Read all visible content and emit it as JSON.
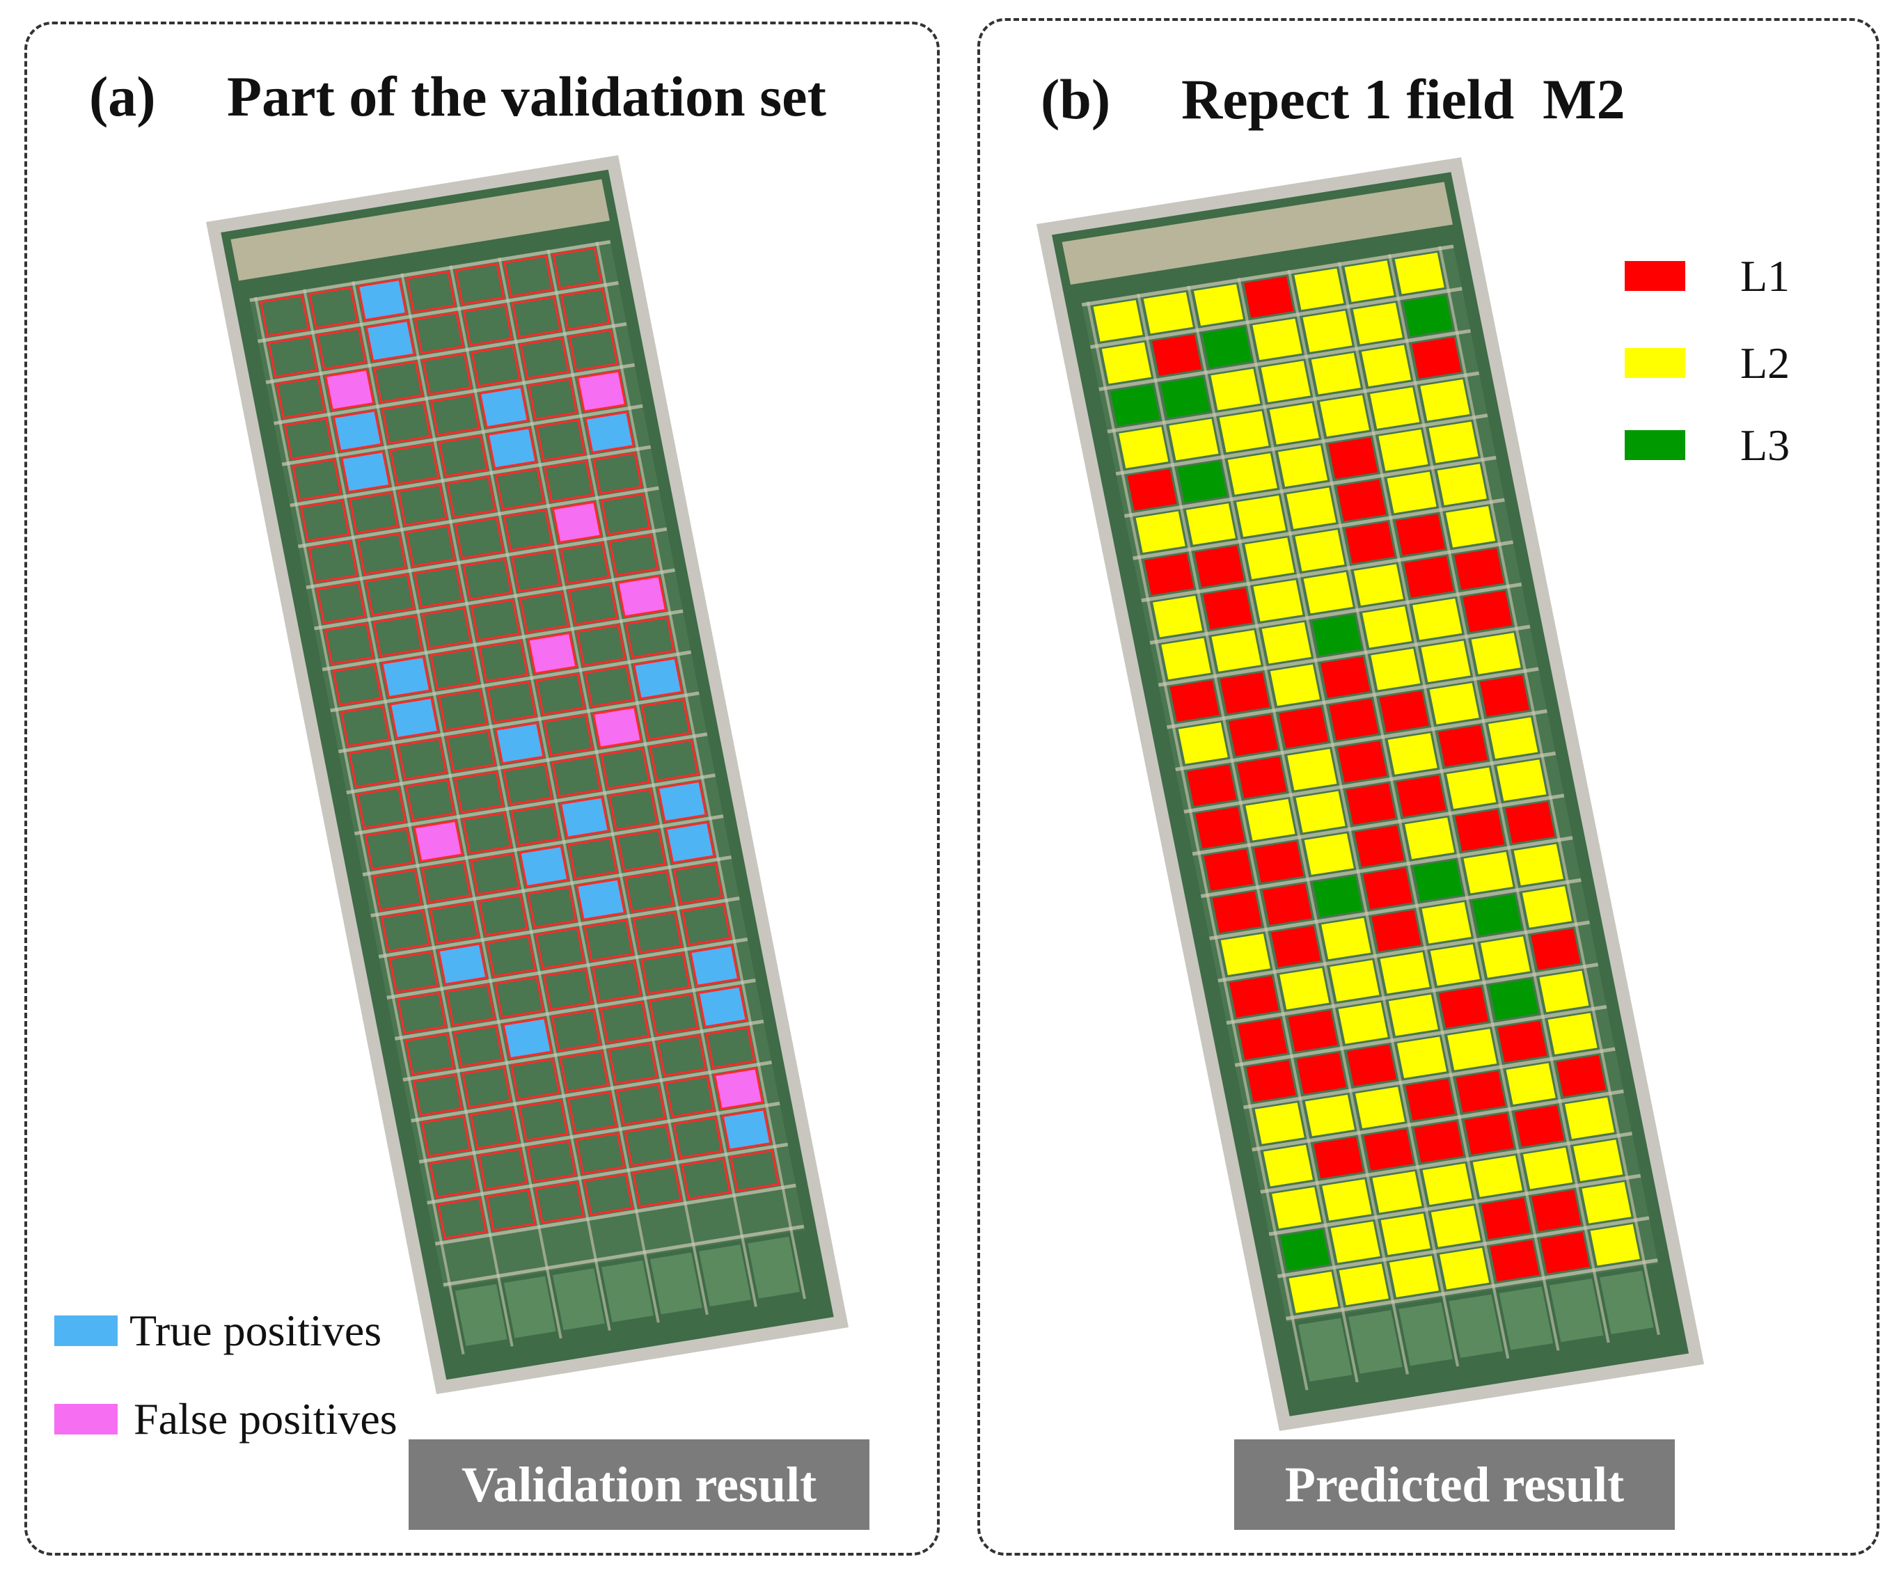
{
  "panel_a": {
    "tag": "(a)",
    "title": "Part of the validation set",
    "legend": [
      {
        "label": "True positives",
        "color": "#4fb4f4"
      },
      {
        "label": "False positives",
        "color": "#f66ef2"
      }
    ],
    "result_label": "Validation result",
    "outline_color": "#ff2a2a",
    "overlays": [
      {
        "row": 1,
        "col": 3,
        "type": "tp"
      },
      {
        "row": 2,
        "col": 3,
        "type": "tp"
      },
      {
        "row": 3,
        "col": 2,
        "type": "fp"
      },
      {
        "row": 4,
        "col": 2,
        "type": "tp"
      },
      {
        "row": 4,
        "col": 5,
        "type": "tp"
      },
      {
        "row": 4,
        "col": 7,
        "type": "fp"
      },
      {
        "row": 5,
        "col": 2,
        "type": "tp"
      },
      {
        "row": 5,
        "col": 5,
        "type": "tp"
      },
      {
        "row": 5,
        "col": 7,
        "type": "tp"
      },
      {
        "row": 7,
        "col": 6,
        "type": "fp"
      },
      {
        "row": 9,
        "col": 7,
        "type": "fp"
      },
      {
        "row": 10,
        "col": 2,
        "type": "tp"
      },
      {
        "row": 10,
        "col": 5,
        "type": "fp"
      },
      {
        "row": 11,
        "col": 2,
        "type": "tp"
      },
      {
        "row": 11,
        "col": 7,
        "type": "tp"
      },
      {
        "row": 12,
        "col": 4,
        "type": "tp"
      },
      {
        "row": 12,
        "col": 6,
        "type": "fp"
      },
      {
        "row": 14,
        "col": 2,
        "type": "fp"
      },
      {
        "row": 14,
        "col": 5,
        "type": "tp"
      },
      {
        "row": 14,
        "col": 7,
        "type": "tp"
      },
      {
        "row": 15,
        "col": 4,
        "type": "tp"
      },
      {
        "row": 15,
        "col": 7,
        "type": "tp"
      },
      {
        "row": 16,
        "col": 5,
        "type": "tp"
      },
      {
        "row": 17,
        "col": 2,
        "type": "tp"
      },
      {
        "row": 18,
        "col": 7,
        "type": "tp"
      },
      {
        "row": 19,
        "col": 3,
        "type": "tp"
      },
      {
        "row": 19,
        "col": 7,
        "type": "tp"
      },
      {
        "row": 21,
        "col": 7,
        "type": "fp"
      },
      {
        "row": 22,
        "col": 7,
        "type": "tp"
      },
      {
        "row": 24,
        "col": 3,
        "type": "tp"
      }
    ]
  },
  "panel_b": {
    "tag": "(b)",
    "title": "Repect 1 field  M2",
    "legend": [
      {
        "label": "L1",
        "color": "#ff0000"
      },
      {
        "label": "L2",
        "color": "#ffff00"
      },
      {
        "label": "L3",
        "color": "#009a00"
      }
    ],
    "result_label": "Predicted result",
    "class_grid": [
      "YYYRYYY",
      "YRGYYYG",
      "GGYYYYR",
      "YYYYYYY",
      "RGYYRYY",
      "YYYYRYY",
      "RRYYRRY",
      "YRYYYRR",
      "YYYGYYR",
      "RRYRYYY",
      "YRRRRYR",
      "RRYRYRY",
      "RYYRRYY",
      "RRYRYRR",
      "RRGRGYY",
      "YRYRYGY",
      "RYYYYYR",
      "RRYYRGY",
      "RRRYYRY",
      "YYYRRYR",
      "YRRRRRY",
      "YYYYYYY",
      "GYYYRRY",
      "YYYYRRY"
    ]
  }
}
